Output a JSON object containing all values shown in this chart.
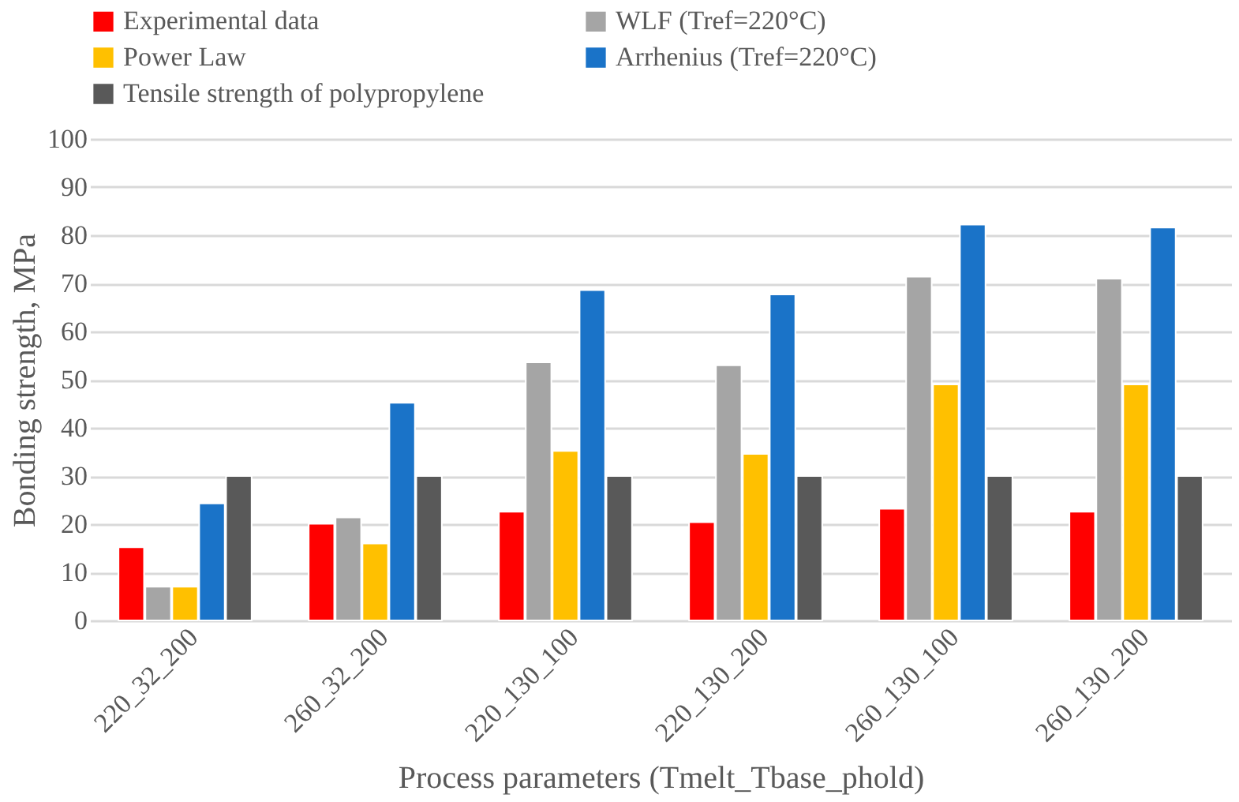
{
  "chart_data": {
    "type": "bar",
    "categories": [
      "220_32_200",
      "260_32_200",
      "220_130_100",
      "220_130_200",
      "260_130_100",
      "260_130_200"
    ],
    "series": [
      {
        "name": "Experimental data",
        "color": "#ff0000",
        "values": [
          15.2,
          20.1,
          22.6,
          20.4,
          23.2,
          22.6
        ]
      },
      {
        "name": "WLF (Tref=220°C)",
        "color": "#a5a5a5",
        "values": [
          7,
          21.4,
          53.6,
          53,
          71.4,
          71
        ]
      },
      {
        "name": "Power Law",
        "color": "#ffc000",
        "values": [
          7,
          16,
          35.2,
          34.6,
          49,
          49
        ]
      },
      {
        "name": "Arrhenius (Tref=220°C)",
        "color": "#1a73c8",
        "values": [
          24.3,
          45.2,
          68.6,
          67.7,
          82.2,
          81.6
        ]
      },
      {
        "name": "Tensile strength of polypropylene",
        "color": "#595959",
        "values": [
          30,
          30,
          30,
          30,
          30,
          30
        ]
      }
    ],
    "xlabel": "Process parameters (Tmelt_Tbase_phold)",
    "ylabel": "Bonding strength, MPa",
    "ylim": [
      0,
      100
    ],
    "yticks": [
      0,
      10,
      20,
      30,
      40,
      50,
      60,
      70,
      80,
      90,
      100
    ],
    "grid": "y",
    "legend": "top"
  }
}
